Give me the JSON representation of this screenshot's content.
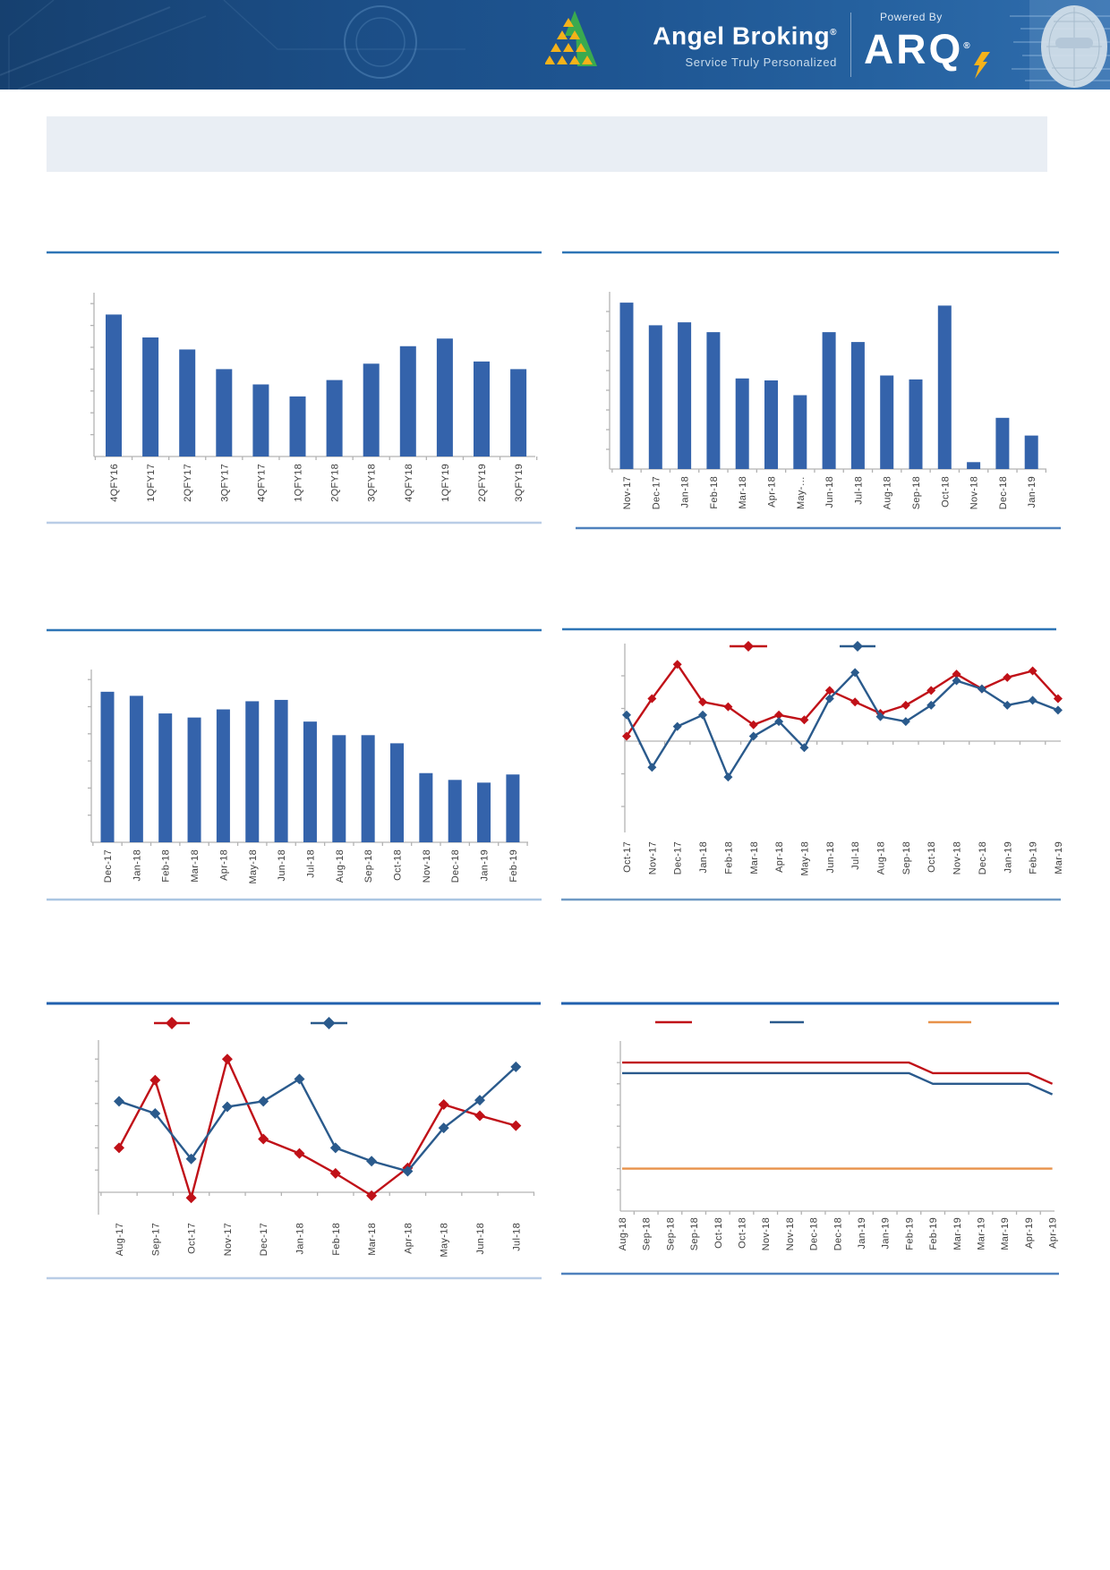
{
  "header": {
    "brand": "Angel Broking",
    "brand_reg": "®",
    "tagline": "Service Truly Personalized",
    "powered_by": "Powered By",
    "arq": "ARQ",
    "arq_reg": "®"
  },
  "banner": {
    "text": ""
  },
  "chart_data": [
    {
      "id": "quarterly-results-bar",
      "type": "bar",
      "title": "",
      "xlabel": "",
      "ylabel": "",
      "note": "y-axis tick marks present but unlabeled; values estimated in axis tick units",
      "ylim": [
        0,
        7.5
      ],
      "grid": false,
      "bar_color": "#3463ab",
      "categories": [
        "4QFY16",
        "1QFY17",
        "2QFY17",
        "3QFY17",
        "4QFY17",
        "1QFY18",
        "2QFY18",
        "3QFY18",
        "4QFY18",
        "1QFY19",
        "2QFY19",
        "3QFY19"
      ],
      "values": [
        6.5,
        5.45,
        4.9,
        4.0,
        3.3,
        2.75,
        3.5,
        4.25,
        5.05,
        5.4,
        4.35,
        4.0
      ]
    },
    {
      "id": "monthly-bar-a",
      "type": "bar",
      "title": "",
      "xlabel": "",
      "ylabel": "",
      "note": "y-axis tick marks present but unlabeled; values estimated in axis tick units",
      "ylim": [
        0,
        9
      ],
      "grid": false,
      "bar_color": "#3463ab",
      "categories": [
        "Nov-17",
        "Dec-17",
        "Jan-18",
        "Feb-18",
        "Mar-18",
        "Apr-18",
        "May-…",
        "Jun-18",
        "Jul-18",
        "Aug-18",
        "Sep-18",
        "Oct-18",
        "Nov-18",
        "Dec-18",
        "Jan-19"
      ],
      "values": [
        8.45,
        7.3,
        7.45,
        6.95,
        4.6,
        4.5,
        3.75,
        6.95,
        6.45,
        4.75,
        4.55,
        8.3,
        0.35,
        2.6,
        1.7
      ]
    },
    {
      "id": "monthly-bar-b",
      "type": "bar",
      "title": "",
      "xlabel": "",
      "ylabel": "",
      "note": "y-axis tick marks present but unlabeled; values estimated in axis tick units",
      "ylim": [
        0,
        6.4
      ],
      "grid": false,
      "bar_color": "#3463ab",
      "categories": [
        "Dec-17",
        "Jan-18",
        "Feb-18",
        "Mar-18",
        "Apr-18",
        "May-18",
        "Jun-18",
        "Jul-18",
        "Aug-18",
        "Sep-18",
        "Oct-18",
        "Nov-18",
        "Dec-18",
        "Jan-19",
        "Feb-19"
      ],
      "values": [
        5.55,
        5.4,
        4.75,
        4.6,
        4.9,
        5.2,
        5.25,
        4.45,
        3.95,
        3.95,
        3.65,
        2.55,
        2.3,
        2.2,
        2.5
      ]
    },
    {
      "id": "dual-line-a",
      "type": "line",
      "title": "",
      "xlabel": "",
      "ylabel": "",
      "note": "axes unlabeled; values estimated in axis tick units relative to the zero line; legend labels not visible",
      "ylim": [
        -2.8,
        3.0
      ],
      "grid": false,
      "legend_position": "top",
      "categories": [
        "Oct-17",
        "Nov-17",
        "Dec-17",
        "Jan-18",
        "Feb-18",
        "Mar-18",
        "Apr-18",
        "May-18",
        "Jun-18",
        "Jul-18",
        "Aug-18",
        "Sep-18",
        "Oct-18",
        "Nov-18",
        "Dec-18",
        "Jan-19",
        "Feb-19",
        "Mar-19"
      ],
      "series": [
        {
          "name": "series-red",
          "color": "#c01118",
          "marker": "diamond",
          "values": [
            0.15,
            1.3,
            2.35,
            1.2,
            1.05,
            0.5,
            0.8,
            0.65,
            1.55,
            1.2,
            0.85,
            1.1,
            1.55,
            2.05,
            1.6,
            1.95,
            2.15,
            1.3
          ]
        },
        {
          "name": "series-blue",
          "color": "#2a5a8c",
          "marker": "diamond",
          "values": [
            0.8,
            -0.8,
            0.45,
            0.8,
            -1.1,
            0.15,
            0.6,
            -0.2,
            1.3,
            2.1,
            0.75,
            0.6,
            1.1,
            1.85,
            1.6,
            1.1,
            1.25,
            0.95
          ]
        }
      ]
    },
    {
      "id": "dual-line-b",
      "type": "line",
      "title": "",
      "xlabel": "",
      "ylabel": "",
      "note": "axes unlabeled; values estimated in axis tick units relative to the zero line; legend labels not visible",
      "ylim": [
        -1.0,
        6.9
      ],
      "grid": false,
      "legend_position": "top",
      "categories": [
        "Aug-17",
        "Sep-17",
        "Oct-17",
        "Nov-17",
        "Dec-17",
        "Jan-18",
        "Feb-18",
        "Mar-18",
        "Apr-18",
        "May-18",
        "Jun-18",
        "Jul-18"
      ],
      "series": [
        {
          "name": "series-red",
          "color": "#c01118",
          "marker": "diamond",
          "values": [
            2.0,
            5.05,
            -0.25,
            6.0,
            2.4,
            1.75,
            0.85,
            -0.15,
            1.1,
            3.95,
            3.45,
            3.0
          ]
        },
        {
          "name": "series-blue",
          "color": "#2a5a8c",
          "marker": "diamond",
          "values": [
            4.1,
            3.55,
            1.5,
            3.85,
            4.1,
            5.1,
            2.0,
            1.4,
            0.95,
            2.9,
            4.15,
            5.65
          ]
        }
      ]
    },
    {
      "id": "step-lines",
      "type": "line",
      "title": "",
      "xlabel": "",
      "ylabel": "",
      "note": "three flat stepped lines, no markers; axes unlabeled; values estimated in axis tick units; legend labels not visible",
      "ylim": [
        0,
        8
      ],
      "grid": false,
      "legend_position": "top",
      "categories": [
        "Aug-18",
        "Sep-18",
        "Sep-18",
        "Sep-18",
        "Oct-18",
        "Oct-18",
        "Nov-18",
        "Nov-18",
        "Dec-18",
        "Dec-18",
        "Jan-19",
        "Jan-19",
        "Feb-19",
        "Feb-19",
        "Mar-19",
        "Mar-19",
        "Mar-19",
        "Apr-19",
        "Apr-19"
      ],
      "series": [
        {
          "name": "series-red",
          "color": "#c01118",
          "marker": "none",
          "values": [
            7,
            7,
            7,
            7,
            7,
            7,
            7,
            7,
            7,
            7,
            7,
            7,
            7,
            6.5,
            6.5,
            6.5,
            6.5,
            6.5,
            6
          ]
        },
        {
          "name": "series-blue",
          "color": "#2a5a8c",
          "marker": "none",
          "values": [
            6.5,
            6.5,
            6.5,
            6.5,
            6.5,
            6.5,
            6.5,
            6.5,
            6.5,
            6.5,
            6.5,
            6.5,
            6.5,
            6,
            6,
            6,
            6,
            6,
            5.5
          ]
        },
        {
          "name": "series-orange",
          "color": "#e8924a",
          "marker": "none",
          "values": [
            2,
            2,
            2,
            2,
            2,
            2,
            2,
            2,
            2,
            2,
            2,
            2,
            2,
            2,
            2,
            2,
            2,
            2,
            2
          ]
        }
      ]
    }
  ]
}
